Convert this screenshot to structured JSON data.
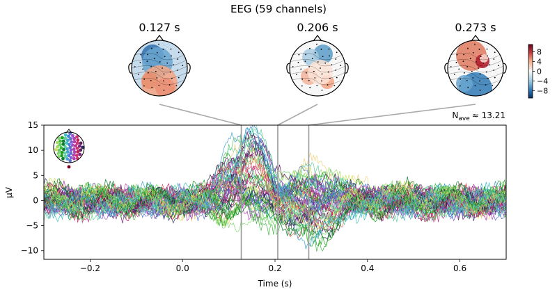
{
  "chart_data": {
    "type": "line",
    "title": "EEG (59 channels)",
    "xlabel": "Time (s)",
    "ylabel": "µV",
    "xlim": [
      -0.3,
      0.7
    ],
    "ylim": [
      -11.7,
      15
    ],
    "x_ticks": [
      -0.2,
      0.0,
      0.2,
      0.4,
      0.6
    ],
    "x_tick_labels": [
      "−0.2",
      "0.0",
      "0.2",
      "0.4",
      "0.6"
    ],
    "y_ticks": [
      15,
      10,
      5,
      0,
      -5,
      -10
    ],
    "y_tick_labels": [
      "15",
      "10",
      "5",
      "0",
      "−5",
      "−10"
    ],
    "n_channels": 59,
    "nave_label": "N",
    "nave_sub": "ave",
    "nave_value": "≈ 13.21",
    "topomap_times": [
      0.127,
      0.206,
      0.273
    ],
    "topomap_labels": [
      "0.127 s",
      "0.206 s",
      "0.273 s"
    ],
    "colorbar": {
      "ticks": [
        8,
        4,
        0,
        -4,
        -8
      ],
      "tick_labels": [
        "8",
        "4",
        "0",
        "−4",
        "−8"
      ],
      "colormap": "RdBu_r",
      "range": [
        -11,
        11
      ]
    },
    "channel_colors": [
      "#f0d080",
      "#d0e060",
      "#a0d860",
      "#80d870",
      "#60c860",
      "#40b840",
      "#20a020",
      "#108030",
      "#60d0a0",
      "#40c0c0",
      "#40a0d0",
      "#4080e0",
      "#6070d0",
      "#8060d0",
      "#a050c8",
      "#b040b0",
      "#c03090",
      "#d03070",
      "#c02050",
      "#802080",
      "#602060",
      "#303060",
      "#203040",
      "#e06060"
    ],
    "series_shape": {
      "description": "Butterfly plot of 59 evoked EEG channel traces in µV; keypoints are the envelope profile of the traces",
      "keypoints_t": [
        -0.3,
        -0.2,
        -0.1,
        0.0,
        0.05,
        0.1,
        0.127,
        0.15,
        0.18,
        0.206,
        0.23,
        0.273,
        0.3,
        0.4,
        0.5,
        0.6,
        0.7
      ],
      "envelope_max": [
        5,
        5,
        5,
        4,
        5,
        9,
        11,
        14,
        12,
        6,
        7,
        8,
        6,
        5,
        6,
        6,
        5
      ],
      "envelope_min": [
        -5,
        -4,
        -5,
        -4,
        -4,
        -5,
        -7,
        -6,
        -7,
        -4,
        -9,
        -10,
        -7,
        -6,
        -6,
        -6,
        -5
      ]
    }
  }
}
